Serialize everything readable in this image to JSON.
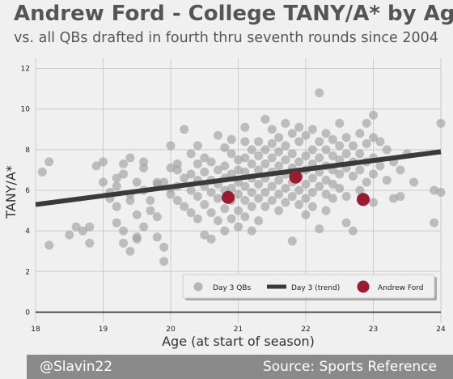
{
  "header": {
    "title": "Andrew Ford - College TANY/A* by Age",
    "subtitle": "vs. all QBs drafted in fourth thru seventh rounds since 2004"
  },
  "footer": {
    "handle": "@Slavin22",
    "source": "Source: Sports Reference"
  },
  "colors": {
    "background": "#f0f0f0",
    "points": "#a0a0a0",
    "trend": "#3a3a3a",
    "highlight": "#9b1b30",
    "footer": "#8a8a8a"
  },
  "chart_data": {
    "type": "scatter",
    "xlabel": "Age (at start of season)",
    "ylabel": "TANY/A*",
    "xlim": [
      18,
      24
    ],
    "ylim": [
      -0.5,
      12.5
    ],
    "xticks": [
      "18",
      "19",
      "20",
      "21",
      "22",
      "23",
      "24"
    ],
    "yticks": [
      "0",
      "2",
      "4",
      "6",
      "8",
      "10",
      "12"
    ],
    "grid": true,
    "legend_position": "bottom-right",
    "legend": [
      "Day 3 QBs",
      "Day 3 (trend)",
      "Andrew Ford"
    ],
    "series": [
      {
        "name": "Day 3 QBs",
        "points": [
          [
            18.1,
            6.9
          ],
          [
            18.2,
            7.4
          ],
          [
            18.2,
            3.3
          ],
          [
            18.5,
            3.8
          ],
          [
            18.6,
            4.2
          ],
          [
            18.7,
            4.0
          ],
          [
            18.8,
            3.4
          ],
          [
            18.8,
            4.2
          ],
          [
            18.9,
            7.2
          ],
          [
            19.0,
            7.4
          ],
          [
            19.0,
            6.4
          ],
          [
            19.1,
            5.9
          ],
          [
            19.1,
            5.6
          ],
          [
            19.2,
            6.2
          ],
          [
            19.2,
            6.6
          ],
          [
            19.2,
            5.2
          ],
          [
            19.2,
            4.4
          ],
          [
            19.3,
            6.8
          ],
          [
            19.3,
            7.3
          ],
          [
            19.3,
            4.0
          ],
          [
            19.3,
            3.4
          ],
          [
            19.4,
            7.6
          ],
          [
            19.4,
            5.5
          ],
          [
            19.4,
            3.0
          ],
          [
            19.4,
            5.8
          ],
          [
            19.5,
            6.4
          ],
          [
            19.5,
            4.8
          ],
          [
            19.5,
            3.7
          ],
          [
            19.5,
            3.6
          ],
          [
            19.6,
            7.4
          ],
          [
            19.6,
            7.1
          ],
          [
            19.6,
            6.0
          ],
          [
            19.6,
            4.2
          ],
          [
            19.7,
            5.5
          ],
          [
            19.7,
            5.0
          ],
          [
            19.8,
            6.4
          ],
          [
            19.8,
            6.3
          ],
          [
            19.8,
            4.7
          ],
          [
            19.8,
            3.7
          ],
          [
            19.9,
            6.4
          ],
          [
            19.9,
            3.2
          ],
          [
            19.9,
            2.5
          ],
          [
            20.0,
            7.1
          ],
          [
            20.0,
            8.2
          ],
          [
            20.0,
            6.1
          ],
          [
            20.0,
            5.8
          ],
          [
            20.1,
            7.3
          ],
          [
            20.1,
            7.0
          ],
          [
            20.1,
            6.2
          ],
          [
            20.1,
            5.5
          ],
          [
            20.2,
            9.0
          ],
          [
            20.2,
            6.6
          ],
          [
            20.2,
            5.2
          ],
          [
            20.3,
            7.8
          ],
          [
            20.3,
            6.8
          ],
          [
            20.3,
            6.0
          ],
          [
            20.3,
            4.9
          ],
          [
            20.4,
            8.2
          ],
          [
            20.4,
            7.3
          ],
          [
            20.4,
            6.5
          ],
          [
            20.4,
            5.7
          ],
          [
            20.4,
            4.6
          ],
          [
            20.5,
            7.6
          ],
          [
            20.5,
            6.9
          ],
          [
            20.5,
            6.2
          ],
          [
            20.5,
            5.3
          ],
          [
            20.5,
            3.8
          ],
          [
            20.6,
            7.4
          ],
          [
            20.6,
            6.5
          ],
          [
            20.6,
            5.9
          ],
          [
            20.6,
            4.9
          ],
          [
            20.6,
            3.6
          ],
          [
            20.7,
            8.7
          ],
          [
            20.7,
            7.0
          ],
          [
            20.7,
            6.3
          ],
          [
            20.7,
            5.6
          ],
          [
            20.7,
            4.5
          ],
          [
            20.8,
            8.1
          ],
          [
            20.8,
            7.2
          ],
          [
            20.8,
            6.6
          ],
          [
            20.8,
            6.0
          ],
          [
            20.8,
            5.1
          ],
          [
            20.8,
            4.0
          ],
          [
            20.9,
            8.5
          ],
          [
            20.9,
            7.8
          ],
          [
            20.9,
            6.8
          ],
          [
            20.9,
            6.1
          ],
          [
            20.9,
            5.5
          ],
          [
            20.9,
            4.6
          ],
          [
            21.0,
            7.5
          ],
          [
            21.0,
            7.0
          ],
          [
            21.0,
            6.4
          ],
          [
            21.0,
            5.8
          ],
          [
            21.0,
            5.0
          ],
          [
            21.0,
            4.2
          ],
          [
            21.1,
            9.1
          ],
          [
            21.1,
            8.4
          ],
          [
            21.1,
            7.6
          ],
          [
            21.1,
            6.9
          ],
          [
            21.1,
            6.2
          ],
          [
            21.1,
            5.5
          ],
          [
            21.1,
            4.7
          ],
          [
            21.2,
            8.0
          ],
          [
            21.2,
            7.3
          ],
          [
            21.2,
            6.6
          ],
          [
            21.2,
            5.9
          ],
          [
            21.2,
            5.2
          ],
          [
            21.2,
            4.0
          ],
          [
            21.3,
            8.4
          ],
          [
            21.3,
            7.7
          ],
          [
            21.3,
            7.0
          ],
          [
            21.3,
            6.3
          ],
          [
            21.3,
            5.6
          ],
          [
            21.3,
            4.5
          ],
          [
            21.4,
            9.5
          ],
          [
            21.4,
            8.0
          ],
          [
            21.4,
            7.3
          ],
          [
            21.4,
            6.6
          ],
          [
            21.4,
            5.9
          ],
          [
            21.4,
            5.2
          ],
          [
            21.5,
            9.0
          ],
          [
            21.5,
            8.3
          ],
          [
            21.5,
            7.6
          ],
          [
            21.5,
            6.9
          ],
          [
            21.5,
            6.2
          ],
          [
            21.5,
            5.5
          ],
          [
            21.6,
            8.6
          ],
          [
            21.6,
            7.9
          ],
          [
            21.6,
            7.2
          ],
          [
            21.6,
            6.5
          ],
          [
            21.6,
            5.8
          ],
          [
            21.6,
            5.0
          ],
          [
            21.7,
            9.3
          ],
          [
            21.7,
            8.2
          ],
          [
            21.7,
            7.5
          ],
          [
            21.7,
            6.8
          ],
          [
            21.7,
            6.1
          ],
          [
            21.7,
            5.4
          ],
          [
            21.8,
            8.8
          ],
          [
            21.8,
            7.8
          ],
          [
            21.8,
            7.1
          ],
          [
            21.8,
            6.4
          ],
          [
            21.8,
            5.7
          ],
          [
            21.8,
            3.5
          ],
          [
            21.9,
            9.1
          ],
          [
            21.9,
            8.4
          ],
          [
            21.9,
            7.4
          ],
          [
            21.9,
            6.7
          ],
          [
            21.9,
            6.0
          ],
          [
            21.9,
            5.3
          ],
          [
            22.0,
            8.7
          ],
          [
            22.0,
            7.7
          ],
          [
            22.0,
            7.0
          ],
          [
            22.0,
            6.3
          ],
          [
            22.0,
            5.6
          ],
          [
            22.0,
            4.8
          ],
          [
            22.1,
            9.0
          ],
          [
            22.1,
            8.0
          ],
          [
            22.1,
            7.3
          ],
          [
            22.1,
            6.6
          ],
          [
            22.1,
            5.9
          ],
          [
            22.1,
            5.2
          ],
          [
            22.2,
            10.8
          ],
          [
            22.2,
            8.4
          ],
          [
            22.2,
            7.6
          ],
          [
            22.2,
            6.9
          ],
          [
            22.2,
            6.2
          ],
          [
            22.2,
            4.1
          ],
          [
            22.3,
            8.8
          ],
          [
            22.3,
            8.0
          ],
          [
            22.3,
            7.2
          ],
          [
            22.3,
            6.5
          ],
          [
            22.3,
            5.8
          ],
          [
            22.3,
            5.0
          ],
          [
            22.4,
            8.5
          ],
          [
            22.4,
            7.7
          ],
          [
            22.4,
            7.0
          ],
          [
            22.4,
            6.3
          ],
          [
            22.4,
            5.6
          ],
          [
            22.5,
            9.3
          ],
          [
            22.5,
            8.2
          ],
          [
            22.5,
            7.5
          ],
          [
            22.5,
            6.8
          ],
          [
            22.5,
            6.1
          ],
          [
            22.6,
            8.6
          ],
          [
            22.6,
            7.8
          ],
          [
            22.6,
            7.1
          ],
          [
            22.6,
            5.7
          ],
          [
            22.6,
            4.4
          ],
          [
            22.7,
            8.2
          ],
          [
            22.7,
            7.4
          ],
          [
            22.7,
            6.7
          ],
          [
            22.7,
            4.0
          ],
          [
            22.8,
            8.8
          ],
          [
            22.8,
            7.8
          ],
          [
            22.8,
            7.0
          ],
          [
            22.8,
            6.0
          ],
          [
            22.9,
            9.3
          ],
          [
            22.9,
            8.3
          ],
          [
            22.9,
            7.4
          ],
          [
            22.9,
            6.4
          ],
          [
            23.0,
            9.7
          ],
          [
            23.0,
            8.6
          ],
          [
            23.0,
            7.6
          ],
          [
            23.0,
            6.8
          ],
          [
            23.0,
            5.4
          ],
          [
            23.1,
            8.4
          ],
          [
            23.1,
            7.2
          ],
          [
            23.2,
            8.0
          ],
          [
            23.2,
            6.5
          ],
          [
            23.3,
            7.4
          ],
          [
            23.3,
            5.6
          ],
          [
            23.4,
            7.0
          ],
          [
            23.4,
            5.7
          ],
          [
            23.5,
            7.8
          ],
          [
            23.6,
            6.4
          ],
          [
            23.9,
            6.0
          ],
          [
            23.9,
            4.4
          ],
          [
            24.0,
            9.3
          ],
          [
            24.0,
            5.9
          ]
        ]
      },
      {
        "name": "Day 3 (trend)",
        "points": [
          [
            18.0,
            5.3
          ],
          [
            24.0,
            7.9
          ]
        ]
      },
      {
        "name": "Andrew Ford",
        "points": [
          [
            20.85,
            5.65
          ],
          [
            21.85,
            6.65
          ],
          [
            22.85,
            5.55
          ]
        ]
      }
    ]
  }
}
